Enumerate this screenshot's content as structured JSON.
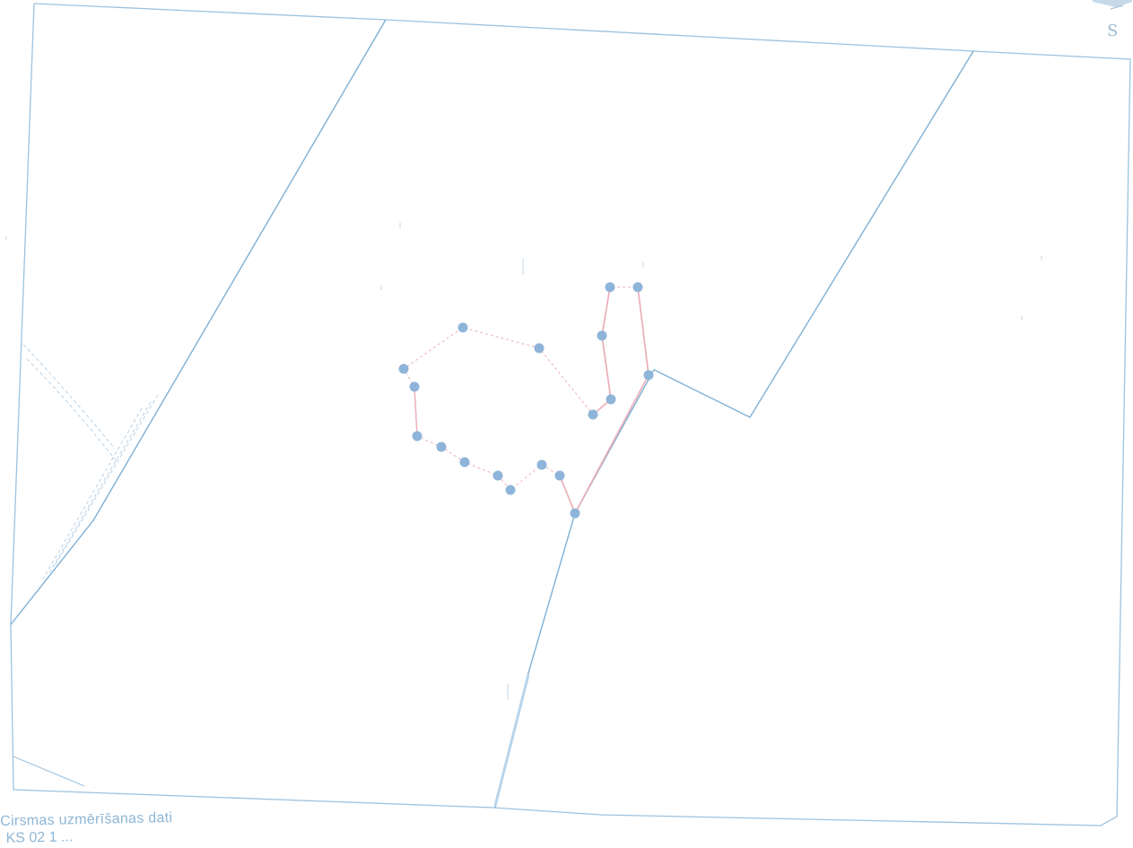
{
  "map": {
    "caption_title": "Cirsmas uzmērīšanas dati",
    "caption_subtitle": "KS 02  1  ...",
    "compass_letter": "S",
    "colors": {
      "paper": "#ffffff",
      "parcel_boundary": "#7fb0d4",
      "survey_line": "#e9a8b2",
      "survey_point": "#8fb4d9",
      "faint_track": "#b9d2e6",
      "text": "#8fb7d6"
    },
    "icons": {
      "compass": "north-arrow-icon"
    }
  }
}
